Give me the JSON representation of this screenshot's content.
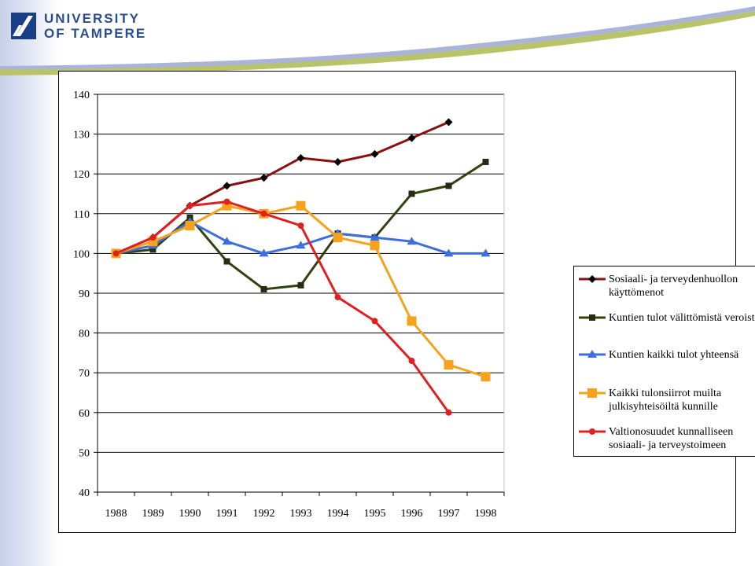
{
  "header": {
    "logo_line1": "UNIVERSITY",
    "logo_line2": "OF TAMPERE"
  },
  "colors": {
    "series1": "#8b1010",
    "series2": "#2f4310",
    "series3": "#3c6ee0",
    "series4": "#f6a21c",
    "series5": "#e02020",
    "grid": "#000000"
  },
  "chart_data": {
    "type": "line",
    "categories": [
      "1988",
      "1989",
      "1990",
      "1991",
      "1992",
      "1993",
      "1994",
      "1995",
      "1996",
      "1997",
      "1998"
    ],
    "ylim": [
      40,
      140
    ],
    "yticks": [
      "40",
      "50",
      "60",
      "70",
      "80",
      "90",
      "100",
      "110",
      "120",
      "130",
      "140"
    ],
    "grid": true,
    "legend_position": "right",
    "series": [
      {
        "name": "Sosiaali- ja terveydenhuollon käyttömenot",
        "marker": "diamond",
        "color": "#8b1010",
        "values": [
          100,
          104,
          112,
          117,
          119,
          124,
          123,
          125,
          129,
          133,
          null
        ]
      },
      {
        "name": "Kuntien tulot välittömistä veroista",
        "marker": "square-small",
        "color": "#2f4310",
        "values": [
          100,
          101,
          109,
          98,
          91,
          92,
          105,
          104,
          115,
          117,
          123
        ]
      },
      {
        "name": "Kuntien kaikki tulot yhteensä",
        "marker": "triangle",
        "color": "#3c6ee0",
        "values": [
          100,
          102,
          108,
          103,
          100,
          102,
          105,
          104,
          103,
          100,
          100
        ]
      },
      {
        "name": "Kaikki tulonsiirrot muilta julkisyhteisöiltä kunnille",
        "marker": "square",
        "color": "#f6a21c",
        "values": [
          100,
          103,
          107,
          112,
          110,
          112,
          104,
          102,
          83,
          72,
          69
        ]
      },
      {
        "name": "Valtionosuudet kunnalliseen sosiaali- ja terveystoimeen",
        "marker": "circle",
        "color": "#e02020",
        "values": [
          100,
          104,
          112,
          113,
          110,
          107,
          89,
          83,
          73,
          60,
          null
        ]
      }
    ]
  },
  "legend": {
    "items": [
      {
        "line1": "Sosiaali- ja terveydenhuollon",
        "line2": "käyttömenot"
      },
      {
        "line1": "Kuntien tulot välittömistä veroista",
        "line2": ""
      },
      {
        "line1": "Kuntien kaikki tulot yhteensä",
        "line2": ""
      },
      {
        "line1": "Kaikki tulonsiirrot muilta",
        "line2": "julkisyhteisöiltä kunnille"
      },
      {
        "line1": "Valtionosuudet kunnalliseen",
        "line2": "sosiaali- ja terveystoimeen"
      }
    ]
  }
}
